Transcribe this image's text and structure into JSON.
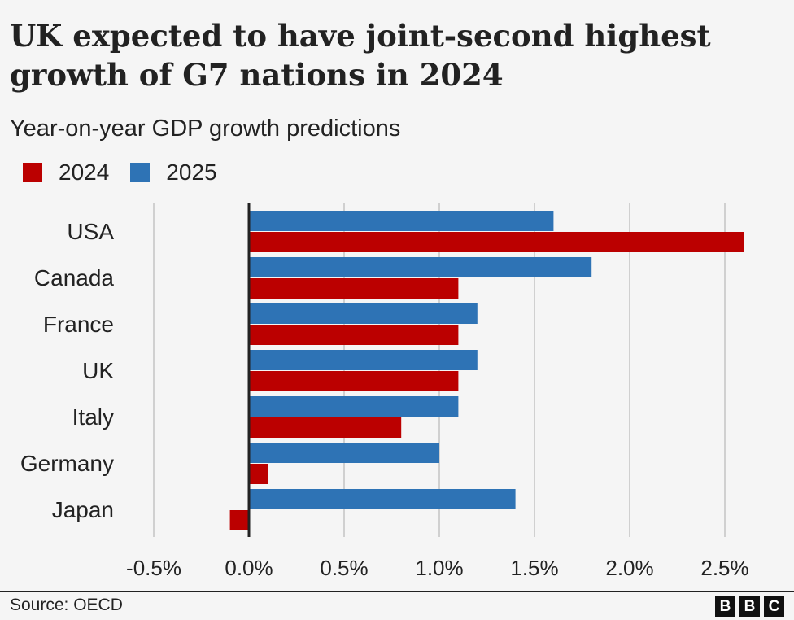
{
  "chart_data": {
    "type": "bar",
    "orientation": "horizontal",
    "title": "UK expected to have joint-second highest growth of G7 nations in 2024",
    "subtitle": "Year-on-year GDP growth predictions",
    "categories": [
      "USA",
      "Canada",
      "France",
      "UK",
      "Italy",
      "Germany",
      "Japan"
    ],
    "series": [
      {
        "name": "2025",
        "color": "#2e73b5",
        "values": [
          1.6,
          1.8,
          1.2,
          1.2,
          1.1,
          1.0,
          1.4
        ]
      },
      {
        "name": "2024",
        "color": "#bb0000",
        "values": [
          2.6,
          1.1,
          1.1,
          1.1,
          0.8,
          0.1,
          -0.1
        ]
      }
    ],
    "legend_order": [
      "2024",
      "2025"
    ],
    "legend_placement": "top-left",
    "xlim": [
      -0.5,
      2.6
    ],
    "xticks": [
      -0.5,
      0.0,
      0.5,
      1.0,
      1.5,
      2.0,
      2.5
    ],
    "xtick_labels": [
      "-0.5%",
      "0.0%",
      "0.5%",
      "1.0%",
      "1.5%",
      "2.0%",
      "2.5%"
    ],
    "grid": "vertical",
    "xlabel": "",
    "ylabel": ""
  },
  "footer": {
    "source": "Source: OECD",
    "logo": [
      "B",
      "B",
      "C"
    ]
  }
}
